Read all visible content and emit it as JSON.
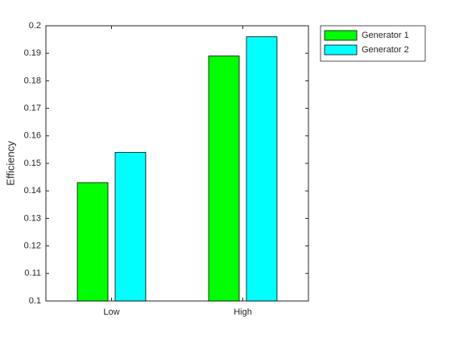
{
  "chart_data": {
    "type": "bar",
    "categories": [
      "Low",
      "High"
    ],
    "series": [
      {
        "name": "Generator 1",
        "color": "#00ff00",
        "values": [
          0.143,
          0.189
        ]
      },
      {
        "name": "Generator 2",
        "color": "#00ffff",
        "values": [
          0.154,
          0.196
        ]
      }
    ],
    "ylabel": "Efficiency",
    "ylim": [
      0.1,
      0.2
    ],
    "yticks": [
      0.1,
      0.11,
      0.12,
      0.13,
      0.14,
      0.15,
      0.16,
      0.17,
      0.18,
      0.19,
      0.2
    ],
    "legend": "outside-northeast"
  }
}
